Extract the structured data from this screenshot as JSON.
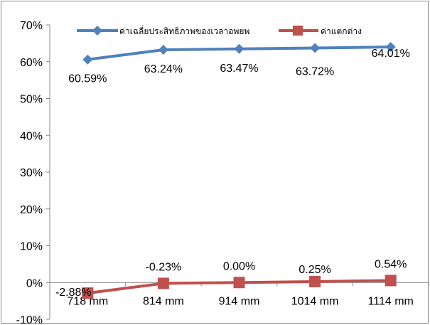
{
  "chart_data": {
    "type": "line",
    "categories": [
      "718 mm",
      "814 mm",
      "914 mm",
      "1014 mm",
      "1114 mm"
    ],
    "series": [
      {
        "name": "ค่าเฉลี่ยประสิทธิภาพของเวลาอพยพ",
        "values": [
          60.59,
          63.24,
          63.47,
          63.72,
          64.01
        ],
        "labels": [
          "60.59%",
          "63.24%",
          "63.47%",
          "63.72%",
          "64.01%"
        ],
        "color": "#4F81BD",
        "marker": "diamond"
      },
      {
        "name": "ค่าแตกต่าง",
        "values": [
          -2.88,
          -0.23,
          0.0,
          0.25,
          0.54
        ],
        "labels": [
          "-2.88%",
          "-0.23%",
          "0.00%",
          "0.25%",
          "0.54%"
        ],
        "color": "#C0504D",
        "marker": "square"
      }
    ],
    "yticks": [
      "70%",
      "60%",
      "50%",
      "40%",
      "30%",
      "20%",
      "10%",
      "0%",
      "-10%"
    ],
    "ylim": [
      -10,
      70
    ],
    "grid": false,
    "legend": "top"
  }
}
